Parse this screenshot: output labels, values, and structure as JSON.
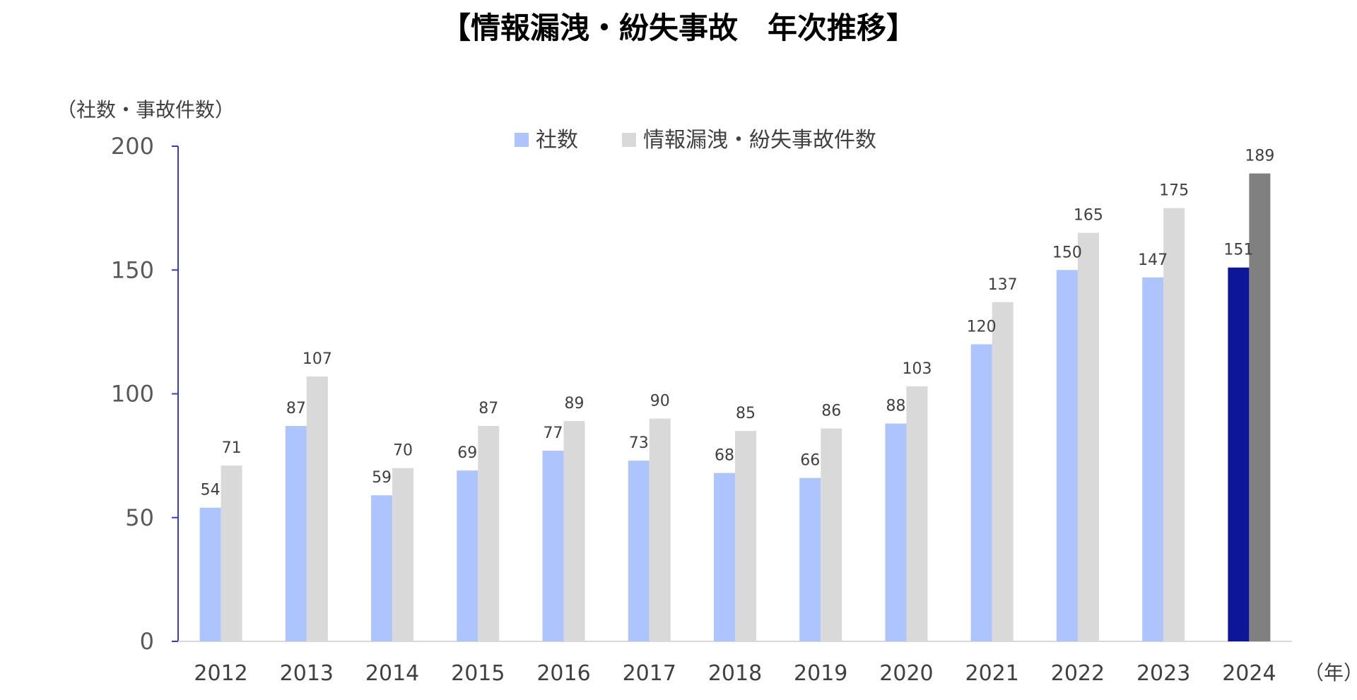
{
  "colors": {
    "series_companies": "#adc4ff",
    "series_incidents": "#d9d9d9",
    "series_companies_highlight": "#0d1599",
    "series_incidents_highlight": "#808080",
    "y_axis": "#3a3acc",
    "x_axis": "#d9d9d9"
  },
  "chart_data": {
    "type": "bar",
    "title": "【情報漏洩・紛失事故　年次推移】",
    "ylabel": "（社数・事故件数）",
    "xlabel": "（年）",
    "ylim": [
      0,
      200
    ],
    "yticks": [
      0,
      50,
      100,
      150,
      200
    ],
    "grid": false,
    "legend_position": "top-center",
    "highlight_category": "2024",
    "categories": [
      "2012",
      "2013",
      "2014",
      "2015",
      "2016",
      "2017",
      "2018",
      "2019",
      "2020",
      "2021",
      "2022",
      "2023",
      "2024"
    ],
    "series": [
      {
        "name": "社数",
        "values": [
          54,
          87,
          59,
          69,
          77,
          73,
          68,
          66,
          88,
          120,
          150,
          147,
          151
        ]
      },
      {
        "name": "情報漏洩・紛失事故件数",
        "values": [
          71,
          107,
          70,
          87,
          89,
          90,
          85,
          86,
          103,
          137,
          165,
          175,
          189
        ]
      }
    ]
  }
}
